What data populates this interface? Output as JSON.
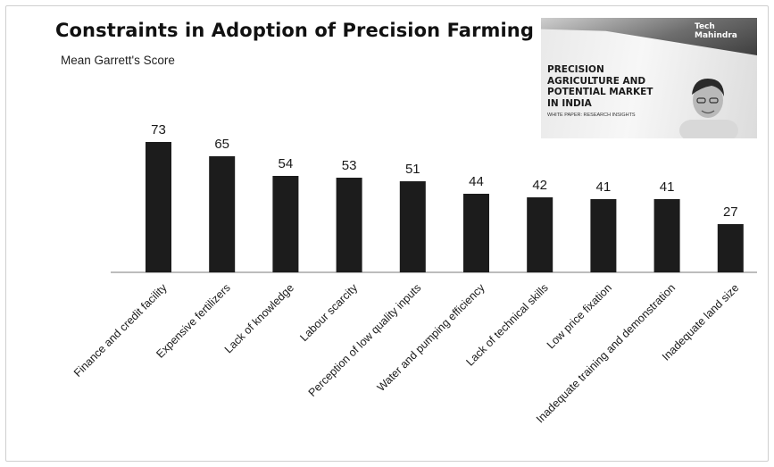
{
  "chart_data": {
    "type": "bar",
    "title": "Constraints in Adoption of Precision Farming",
    "subtitle": "Mean Garrett's Score",
    "categories": [
      "Finance and credit facility",
      "Expensive fertilizers",
      "Lack of knowledge",
      "Labour scarcity",
      "Perception of low quality inputs",
      "Water and pumping efficiency",
      "Lack of technical skills",
      "Low price fixation",
      "Inadequate training and demonstration",
      "Inadequate land size"
    ],
    "values": [
      73,
      65,
      54,
      53,
      51,
      44,
      42,
      41,
      41,
      27
    ],
    "value_labels": [
      "73",
      "65",
      "54",
      "53",
      "51",
      "44",
      "42",
      "41",
      "41",
      "27"
    ],
    "ylim": [
      0,
      80
    ],
    "grid": false,
    "bar_color": "#1c1c1c"
  },
  "promo": {
    "logo_line1": "Tech",
    "logo_line2": "Mahindra",
    "heading_line1": "PRECISION",
    "heading_line2": "AGRICULTURE AND",
    "heading_line3": "POTENTIAL MARKET",
    "heading_line4": "IN INDIA",
    "subheading": "WHITE PAPER: RESEARCH INSIGHTS"
  }
}
